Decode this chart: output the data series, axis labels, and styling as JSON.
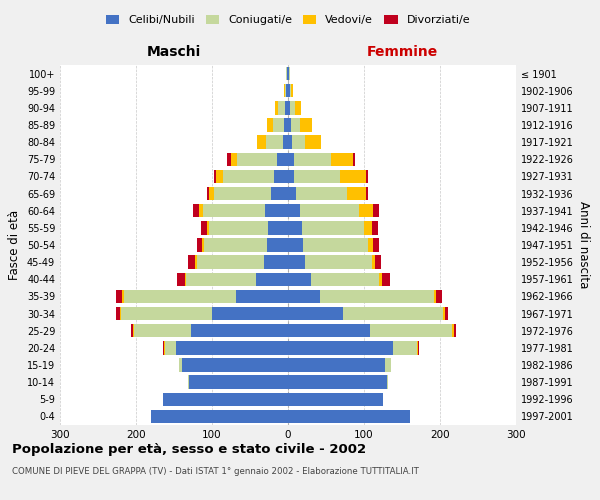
{
  "age_groups": [
    "0-4",
    "5-9",
    "10-14",
    "15-19",
    "20-24",
    "25-29",
    "30-34",
    "35-39",
    "40-44",
    "45-49",
    "50-54",
    "55-59",
    "60-64",
    "65-69",
    "70-74",
    "75-79",
    "80-84",
    "85-89",
    "90-94",
    "95-99",
    "100+"
  ],
  "birth_years": [
    "1997-2001",
    "1992-1996",
    "1987-1991",
    "1982-1986",
    "1977-1981",
    "1972-1976",
    "1967-1971",
    "1962-1966",
    "1957-1961",
    "1952-1956",
    "1947-1951",
    "1942-1946",
    "1937-1941",
    "1932-1936",
    "1927-1931",
    "1922-1926",
    "1917-1921",
    "1912-1916",
    "1907-1911",
    "1902-1906",
    "≤ 1901"
  ],
  "male_celibi": [
    180,
    165,
    130,
    140,
    148,
    128,
    100,
    68,
    42,
    32,
    28,
    26,
    30,
    22,
    18,
    15,
    7,
    5,
    4,
    2,
    1
  ],
  "male_coniugati": [
    0,
    0,
    2,
    3,
    14,
    75,
    120,
    148,
    92,
    88,
    82,
    78,
    82,
    75,
    68,
    52,
    22,
    15,
    9,
    2,
    1
  ],
  "male_vedovi": [
    0,
    0,
    0,
    0,
    1,
    1,
    1,
    2,
    2,
    3,
    3,
    3,
    5,
    7,
    9,
    8,
    12,
    8,
    4,
    1,
    0
  ],
  "male_divorziati": [
    0,
    0,
    0,
    0,
    1,
    2,
    5,
    8,
    10,
    8,
    7,
    7,
    8,
    3,
    2,
    5,
    0,
    0,
    0,
    0,
    0
  ],
  "female_celibi": [
    160,
    125,
    130,
    128,
    138,
    108,
    72,
    42,
    30,
    22,
    20,
    18,
    16,
    10,
    8,
    8,
    5,
    4,
    2,
    2,
    1
  ],
  "female_coniugati": [
    0,
    0,
    2,
    8,
    32,
    108,
    132,
    150,
    90,
    88,
    85,
    82,
    78,
    68,
    60,
    48,
    18,
    12,
    7,
    2,
    1
  ],
  "female_vedovi": [
    0,
    0,
    0,
    0,
    1,
    2,
    2,
    3,
    4,
    5,
    7,
    10,
    18,
    25,
    35,
    30,
    20,
    15,
    8,
    2,
    0
  ],
  "female_divorziati": [
    0,
    0,
    0,
    0,
    1,
    3,
    5,
    8,
    10,
    8,
    8,
    8,
    8,
    2,
    2,
    2,
    0,
    0,
    0,
    0,
    0
  ],
  "xlim": 300,
  "color_celibi": "#4472c4",
  "color_coniugati": "#c5d89d",
  "color_vedovi": "#ffc000",
  "color_divorziati": "#c0001e",
  "title": "Popolazione per età, sesso e stato civile - 2002",
  "subtitle": "COMUNE DI PIEVE DEL GRAPPA (TV) - Dati ISTAT 1° gennaio 2002 - Elaborazione TUTTITALIA.IT",
  "ylabel_left": "Fasce di età",
  "ylabel_right": "Anni di nascita",
  "label_maschi": "Maschi",
  "label_femmine": "Femmine",
  "bg_color": "#f0f0f0",
  "plot_bg_color": "#ffffff"
}
